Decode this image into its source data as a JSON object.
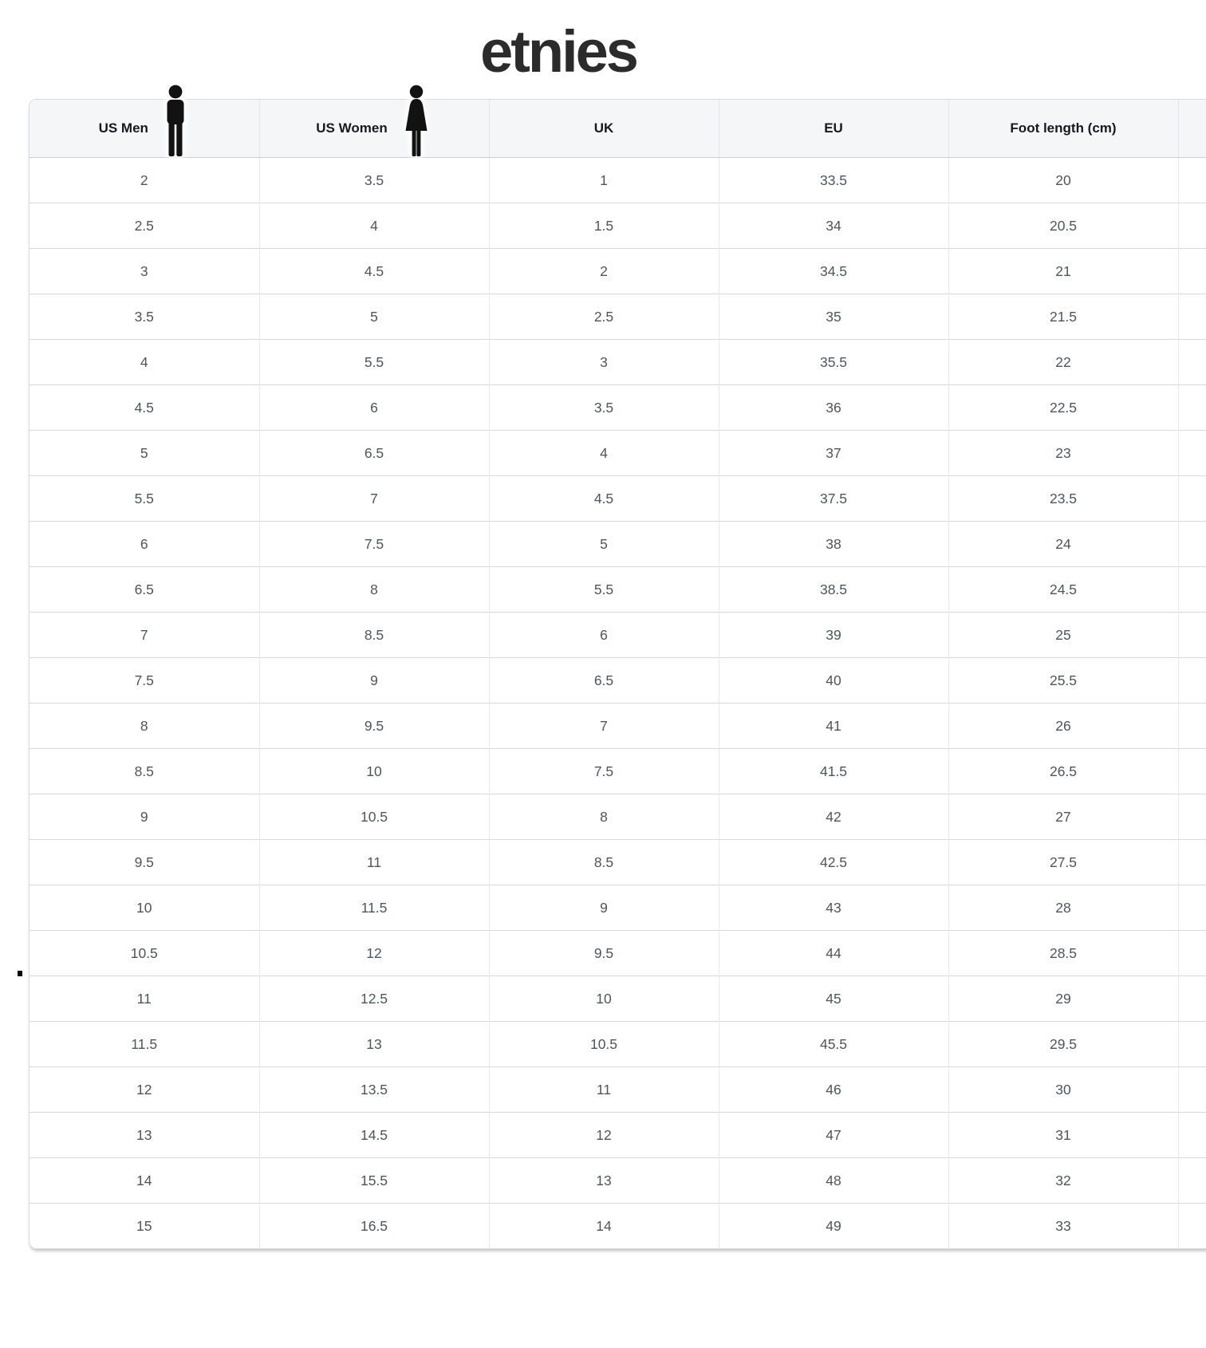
{
  "brand": {
    "logo_text": "etnies"
  },
  "table": {
    "columns": [
      {
        "label": "US Men",
        "icon": "man-icon"
      },
      {
        "label": "US Women",
        "icon": "woman-icon"
      },
      {
        "label": "UK"
      },
      {
        "label": "EU"
      },
      {
        "label": "Foot length (cm)"
      },
      {
        "label": ""
      }
    ],
    "rows": [
      [
        "2",
        "3.5",
        "1",
        "33.5",
        "20"
      ],
      [
        "2.5",
        "4",
        "1.5",
        "34",
        "20.5"
      ],
      [
        "3",
        "4.5",
        "2",
        "34.5",
        "21"
      ],
      [
        "3.5",
        "5",
        "2.5",
        "35",
        "21.5"
      ],
      [
        "4",
        "5.5",
        "3",
        "35.5",
        "22"
      ],
      [
        "4.5",
        "6",
        "3.5",
        "36",
        "22.5"
      ],
      [
        "5",
        "6.5",
        "4",
        "37",
        "23"
      ],
      [
        "5.5",
        "7",
        "4.5",
        "37.5",
        "23.5"
      ],
      [
        "6",
        "7.5",
        "5",
        "38",
        "24"
      ],
      [
        "6.5",
        "8",
        "5.5",
        "38.5",
        "24.5"
      ],
      [
        "7",
        "8.5",
        "6",
        "39",
        "25"
      ],
      [
        "7.5",
        "9",
        "6.5",
        "40",
        "25.5"
      ],
      [
        "8",
        "9.5",
        "7",
        "41",
        "26"
      ],
      [
        "8.5",
        "10",
        "7.5",
        "41.5",
        "26.5"
      ],
      [
        "9",
        "10.5",
        "8",
        "42",
        "27"
      ],
      [
        "9.5",
        "11",
        "8.5",
        "42.5",
        "27.5"
      ],
      [
        "10",
        "11.5",
        "9",
        "43",
        "28"
      ],
      [
        "10.5",
        "12",
        "9.5",
        "44",
        "28.5"
      ],
      [
        "11",
        "12.5",
        "10",
        "45",
        "29"
      ],
      [
        "11.5",
        "13",
        "10.5",
        "45.5",
        "29.5"
      ],
      [
        "12",
        "13.5",
        "11",
        "46",
        "30"
      ],
      [
        "13",
        "14.5",
        "12",
        "47",
        "31"
      ],
      [
        "14",
        "15.5",
        "13",
        "48",
        "32"
      ],
      [
        "15",
        "16.5",
        "14",
        "49",
        "33"
      ]
    ]
  }
}
